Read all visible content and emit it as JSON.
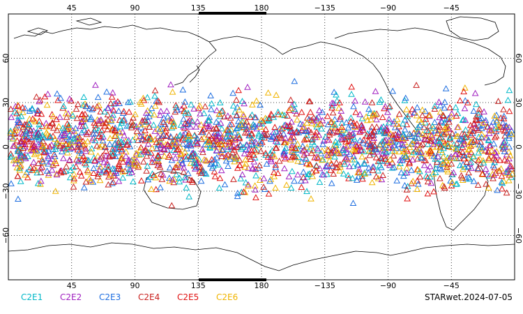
{
  "map": {
    "projection": "equirectangular",
    "lon_center": 180,
    "lat_range": [
      -90,
      90
    ],
    "grid": "dotted",
    "lon_ticks_top": [
      "45",
      "90",
      "135",
      "180",
      "−135",
      "−90",
      "−45"
    ],
    "lon_ticks_bottom": [
      "45",
      "90",
      "135",
      "180",
      "−135",
      "−90",
      "−45"
    ],
    "lat_ticks": [
      "60",
      "30",
      "0",
      "−30",
      "−60"
    ],
    "observation_lat_band": [
      -42,
      48
    ],
    "marker": "triangle-open"
  },
  "legend": [
    {
      "label": "C2E1",
      "color": "#00b8c8"
    },
    {
      "label": "C2E2",
      "color": "#a020c0"
    },
    {
      "label": "C2E3",
      "color": "#1e6ee0"
    },
    {
      "label": "C2E4",
      "color": "#c8201e"
    },
    {
      "label": "C2E5",
      "color": "#e01010"
    },
    {
      "label": "C2E6",
      "color": "#f0b400"
    }
  ],
  "footer": {
    "dataset_label": "STARwet.2024-07-05"
  }
}
